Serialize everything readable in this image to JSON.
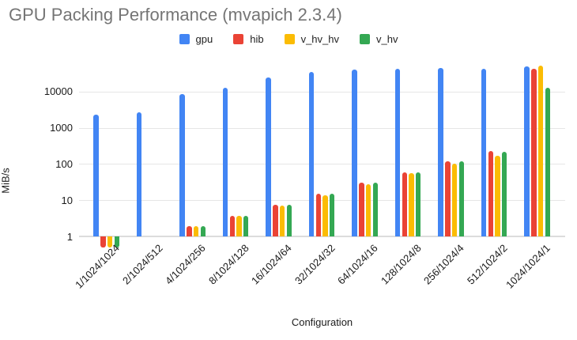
{
  "title": "GPU Packing Performance (mvapich 2.3.4)",
  "chart_data": {
    "type": "bar",
    "title": "GPU Packing Performance (mvapich 2.3.4)",
    "xlabel": "Configuration",
    "ylabel": "MiB/s",
    "y_scale": "log",
    "ylim": [
      0.45,
      100000
    ],
    "grid": true,
    "legend_position": "top-center",
    "y_ticks": [
      1,
      10,
      100,
      1000,
      10000
    ],
    "categories": [
      "1/1024/1024",
      "2/1024/512",
      "4/1024/256",
      "8/1024/128",
      "16/1024/64",
      "32/1024/32",
      "64/1024/16",
      "128/1024/8",
      "256/1024/4",
      "512/1024/2",
      "1024/1024/1"
    ],
    "series": [
      {
        "name": "gpu",
        "color": "#4285F4",
        "values": [
          2300,
          2650,
          8600,
          12600,
          24000,
          35000,
          40000,
          43000,
          45000,
          43000,
          50000
        ]
      },
      {
        "name": "hib",
        "color": "#EA4335",
        "values": [
          0.5,
          1,
          1.9,
          3.7,
          7.5,
          15,
          31,
          60,
          120,
          230,
          42000
        ]
      },
      {
        "name": "v_hv_hv",
        "color": "#FBBC04",
        "values": [
          0.5,
          1,
          1.9,
          3.7,
          7.2,
          14,
          27,
          55,
          100,
          165,
          51000
        ]
      },
      {
        "name": "v_hv",
        "color": "#34A853",
        "values": [
          0.5,
          1,
          1.9,
          3.7,
          7.5,
          15,
          31,
          58,
          120,
          220,
          12500
        ]
      }
    ]
  }
}
